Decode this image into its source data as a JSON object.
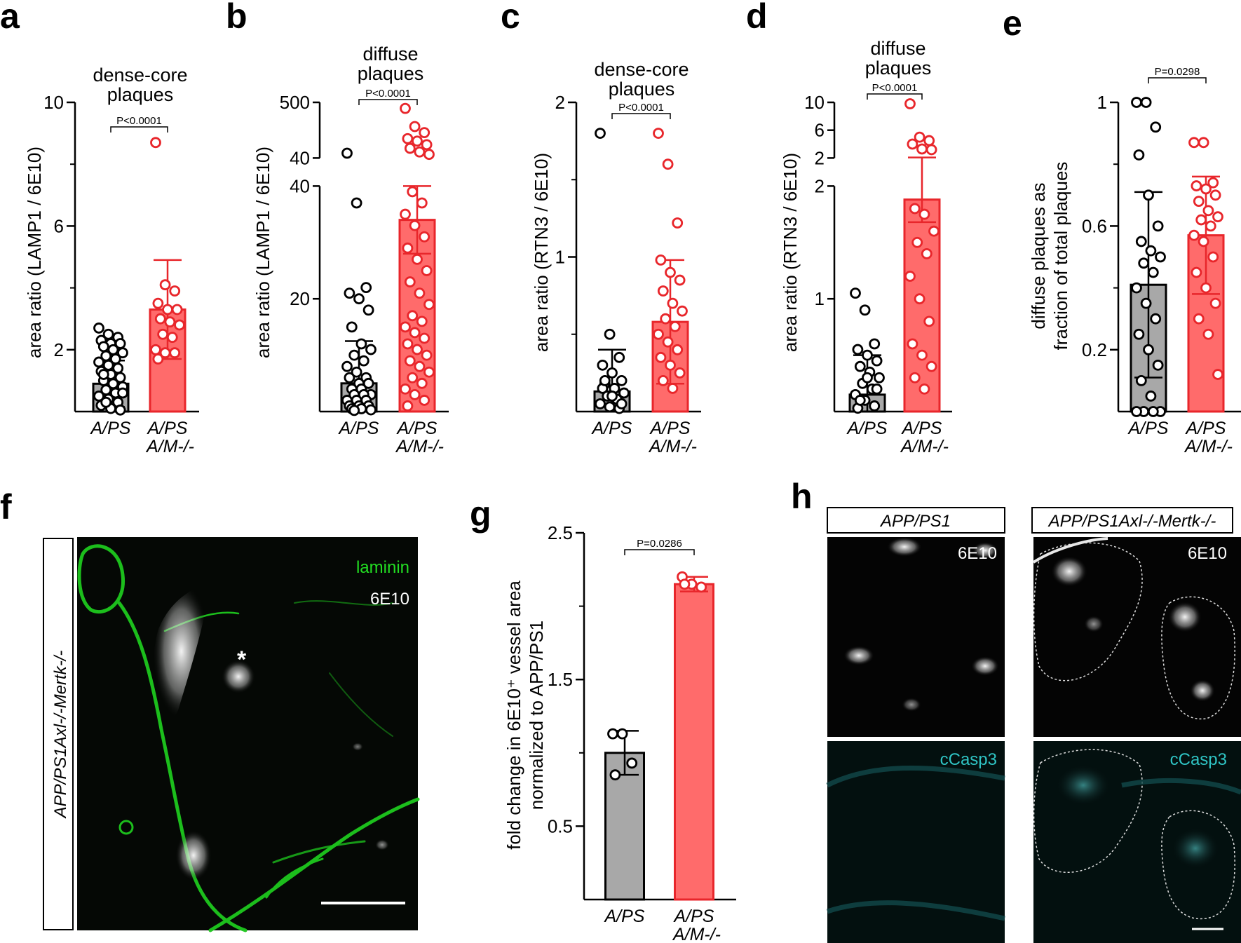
{
  "colors": {
    "wt": "#a8a8a8",
    "ko": "#ff6b6b",
    "ko_stroke": "#e8262b",
    "laminin": "#22dd22",
    "ccasp3": "#2fc4c4"
  },
  "panels": {
    "a": {
      "letter": "a"
    },
    "b": {
      "letter": "b"
    },
    "c": {
      "letter": "c"
    },
    "d": {
      "letter": "d"
    },
    "e": {
      "letter": "e"
    },
    "f": {
      "letter": "f",
      "side_label": "APP/PS1Axl-/-Mertk-/-",
      "channel_1": "laminin",
      "channel_2": "6E10",
      "asterisk": "*"
    },
    "g": {
      "letter": "g"
    },
    "h": {
      "letter": "h",
      "col_1": "APP/PS1",
      "col_2": "APP/PS1Axl-/-Mertk-/-",
      "row_1_label": "6E10",
      "row_2_label": "cCasp3"
    }
  },
  "chart_data": [
    {
      "panel": "a",
      "type": "bar",
      "title": [
        "dense-core",
        "plaques"
      ],
      "ylabel": "area ratio (LAMP1 / 6E10)",
      "categories": [
        [
          "A/PS"
        ],
        [
          "A/PS",
          "A/M-/-"
        ]
      ],
      "ylim": [
        0,
        10
      ],
      "yticks": [
        2,
        6,
        10
      ],
      "yticks_minor": [
        4,
        8
      ],
      "means": [
        0.9,
        3.3
      ],
      "sd": [
        0.75,
        1.6
      ],
      "points": [
        [
          2.7,
          2.5,
          2.4,
          2.3,
          2.2,
          2.2,
          2.1,
          2.0,
          1.9,
          1.8,
          1.7,
          1.6,
          1.5,
          1.4,
          1.3,
          1.2,
          1.1,
          1.0,
          0.9,
          0.8,
          0.7,
          0.6,
          0.5,
          0.4,
          0.3,
          0.2,
          0.1,
          0.05,
          1.2,
          0.9,
          0.6,
          0.3
        ],
        [
          8.7,
          4.1,
          3.9,
          3.5,
          3.3,
          3.3,
          3.0,
          2.9,
          2.8,
          2.5,
          2.4,
          2.0,
          1.9,
          1.9,
          1.7
        ]
      ],
      "pvalue": "P<0.0001"
    },
    {
      "panel": "b",
      "type": "bar",
      "title": [
        "diffuse",
        "plaques"
      ],
      "ylabel": "area ratio (LAMP1 / 6E10)",
      "categories": [
        [
          "A/PS"
        ],
        [
          "A/PS",
          "A/M-/-"
        ]
      ],
      "axis_segments": [
        {
          "range": [
            0,
            40
          ],
          "ticks": [
            20,
            40
          ]
        },
        {
          "range": [
            40,
            500
          ],
          "ticks": [
            40,
            500
          ]
        }
      ],
      "means": [
        5,
        34
      ],
      "sd": [
        7.5,
        6
      ],
      "points": [
        [
          80,
          37,
          22,
          21,
          20,
          18,
          15,
          12,
          11,
          10,
          9,
          8,
          7,
          6,
          6,
          5,
          5,
          4,
          4,
          3,
          3,
          3,
          2,
          2,
          2,
          1,
          1,
          1,
          0.5,
          0.5,
          0.3,
          0.2
        ],
        [
          450,
          300,
          250,
          200,
          180,
          150,
          120,
          90,
          70,
          39,
          37,
          35,
          33,
          31,
          29,
          27,
          25,
          23,
          21,
          19,
          17,
          16,
          15,
          14,
          13,
          12,
          11,
          10,
          9,
          8,
          7,
          6,
          5,
          4,
          3,
          2,
          1
        ]
      ],
      "pvalue": "P<0.0001"
    },
    {
      "panel": "c",
      "type": "bar",
      "title": [
        "dense-core",
        "plaques"
      ],
      "ylabel": "area ratio (RTN3 / 6E10)",
      "categories": [
        [
          "A/PS"
        ],
        [
          "A/PS",
          "A/M-/-"
        ]
      ],
      "ylim": [
        0,
        2
      ],
      "yticks": [
        1,
        2
      ],
      "yticks_minor": [
        0.5,
        1.5
      ],
      "means": [
        0.13,
        0.58
      ],
      "sd": [
        0.27,
        0.4
      ],
      "points": [
        [
          1.8,
          0.5,
          0.35,
          0.3,
          0.25,
          0.2,
          0.18,
          0.15,
          0.12,
          0.1,
          0.08,
          0.05,
          0.03,
          0.02,
          0.15,
          0.1,
          0.05,
          0.2
        ],
        [
          1.8,
          1.6,
          1.22,
          0.98,
          0.9,
          0.85,
          0.78,
          0.7,
          0.65,
          0.6,
          0.55,
          0.5,
          0.45,
          0.4,
          0.35,
          0.3,
          0.25,
          0.2,
          0.15
        ]
      ],
      "pvalue": "P<0.0001"
    },
    {
      "panel": "d",
      "type": "bar",
      "title": [
        "diffuse",
        "plaques"
      ],
      "ylabel": "area ratio (RTN3 / 6E10)",
      "categories": [
        [
          "A/PS"
        ],
        [
          "A/PS",
          "A/M-/-"
        ]
      ],
      "axis_segments": [
        {
          "range": [
            0,
            2
          ],
          "ticks": [
            1,
            2
          ]
        },
        {
          "range": [
            2,
            10
          ],
          "ticks": [
            2,
            6,
            10
          ]
        }
      ],
      "means": [
        0.15,
        1.88
      ],
      "sd": [
        0.35,
        0.2
      ],
      "points": [
        [
          1.05,
          0.9,
          0.6,
          0.55,
          0.5,
          0.45,
          0.4,
          0.35,
          0.3,
          0.25,
          0.2,
          0.15,
          0.1,
          0.05,
          0.03,
          0.3,
          0.2,
          0.1
        ],
        [
          9.8,
          5.0,
          4.5,
          4.0,
          3.3,
          3.2,
          1.8,
          1.75,
          1.6,
          1.5,
          1.4,
          1.2,
          1.0,
          0.8,
          0.6,
          0.5,
          0.4,
          0.3,
          0.2
        ]
      ],
      "pvalue": "P<0.0001"
    },
    {
      "panel": "e",
      "type": "bar",
      "title": [],
      "ylabel": [
        "diffuse plaques as",
        "fraction of total plaques"
      ],
      "categories": [
        [
          "A/PS"
        ],
        [
          "A/PS",
          "A/M-/-"
        ]
      ],
      "ylim": [
        0,
        1.0
      ],
      "yticks": [
        0.2,
        0.6,
        1.0
      ],
      "yticks_minor": [
        0.4,
        0.8
      ],
      "means": [
        0.41,
        0.57
      ],
      "sd": [
        0.3,
        0.19
      ],
      "points": [
        [
          1.0,
          1.0,
          0.92,
          0.83,
          0.7,
          0.6,
          0.55,
          0.52,
          0.5,
          0.48,
          0.45,
          0.4,
          0.35,
          0.3,
          0.25,
          0.2,
          0.15,
          0.1,
          0.05,
          0.0,
          0.0,
          0.0,
          0.0
        ],
        [
          0.87,
          0.87,
          0.74,
          0.73,
          0.72,
          0.7,
          0.68,
          0.65,
          0.63,
          0.62,
          0.6,
          0.57,
          0.55,
          0.5,
          0.45,
          0.4,
          0.35,
          0.3,
          0.25,
          0.12
        ]
      ],
      "pvalue": "P=0.0298"
    },
    {
      "panel": "g",
      "type": "bar",
      "title": [],
      "ylabel": [
        "fold change in 6E10⁺ vessel area",
        "normalized to APP/PS1"
      ],
      "categories": [
        [
          "A/PS"
        ],
        [
          "A/PS",
          "A/M-/-"
        ]
      ],
      "ylim": [
        0,
        2.5
      ],
      "yticks": [
        0.5,
        1.5,
        2.5
      ],
      "yticks_minor": [
        1.0,
        2.0
      ],
      "means": [
        1.0,
        2.15
      ],
      "sd": [
        0.15,
        0.05
      ],
      "points": [
        [
          1.13,
          1.13,
          0.93,
          0.85
        ],
        [
          2.2,
          2.15,
          2.13,
          2.15
        ]
      ],
      "pvalue": "P=0.0286"
    }
  ]
}
